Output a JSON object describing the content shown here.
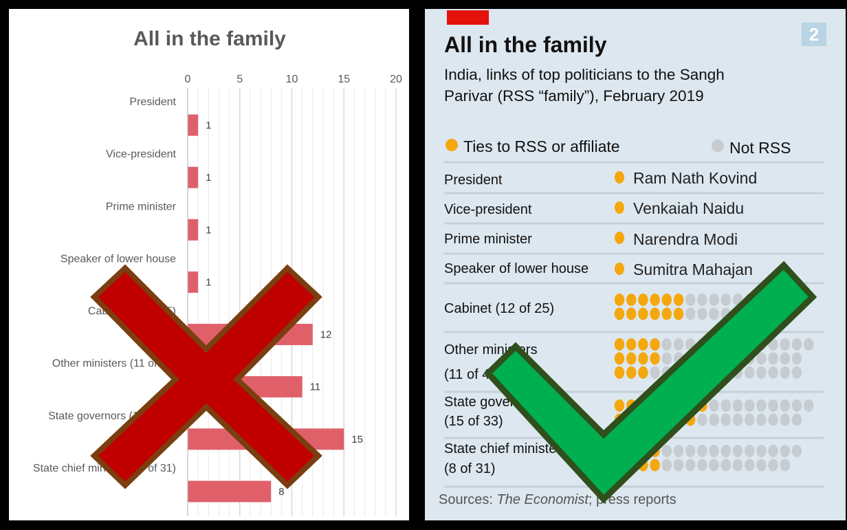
{
  "colors": {
    "bar": "#e0606a",
    "rss": "#f5a70e",
    "not_rss": "#c6ccd0",
    "cross": "#c00000",
    "cross_border": "#7b3e10",
    "check": "#00b050",
    "check_border": "#2f4f1b",
    "economist_red": "#e3120b"
  },
  "chart_data": [
    {
      "type": "bar",
      "orientation": "horizontal",
      "title": "All in the family",
      "categories": [
        "President",
        "Vice-president",
        "Prime minister",
        "Speaker of lower house",
        "Cabinet (12 of 25)",
        "Other ministers (11 of 49)",
        "State governors (15 of 33)",
        "State chief ministers (8 of 31)"
      ],
      "values": [
        1,
        1,
        1,
        1,
        12,
        11,
        15,
        8
      ],
      "xlim": [
        0,
        20
      ],
      "xticks": [
        "0",
        "5",
        "10",
        "15",
        "20"
      ],
      "xtick_values": [
        0,
        5,
        10,
        15,
        20
      ],
      "grid": true,
      "axis_position": "top"
    },
    {
      "type": "table",
      "title": "All in the family",
      "subtitle": "India, links of top politicians to the Sangh Parivar (RSS “family”), February 2019",
      "badge": "2",
      "legend": [
        "Ties to RSS or affiliate",
        "Not RSS"
      ],
      "rows": [
        {
          "label": "President",
          "name": "Ram Nath Kovind",
          "rss": 1,
          "total": 1
        },
        {
          "label": "Vice-president",
          "name": "Venkaiah Naidu",
          "rss": 1,
          "total": 1
        },
        {
          "label": "Prime minister",
          "name": "Narendra Modi",
          "rss": 1,
          "total": 1
        },
        {
          "label": "Speaker of lower house",
          "name": "Sumitra Mahajan",
          "rss": 1,
          "total": 1
        },
        {
          "label": "Cabinet (12 of 25)",
          "rss": 12,
          "total": 25
        },
        {
          "label": "Other ministers (11 of 49)",
          "rss": 11,
          "total": 49
        },
        {
          "label": "State governors (15 of 33)",
          "rss": 15,
          "total": 33
        },
        {
          "label": "State chief ministers (8 of 31)",
          "rss": 8,
          "total": 31
        }
      ],
      "sources_prefix": "Sources: ",
      "sources_italic": "The Economist",
      "sources_suffix": "; press reports"
    }
  ],
  "left_labels": {
    "r4": "Speaker of lower house",
    "r5": "Cabinet (12 of 25)",
    "r6": "Other ministers (11 of 49)",
    "r7": "State governors (15 of 33)"
  },
  "right_labels": {
    "other_l1": "Other ministers",
    "other_l2": "(11 of 49)",
    "gov_l1": "State governors",
    "gov_l2": "(15 of 33)",
    "cm_l1": "State chief ministers",
    "cm_l2": "(8 of 31)"
  },
  "marks": {
    "cross": "wrong-mark",
    "check": "right-mark"
  }
}
